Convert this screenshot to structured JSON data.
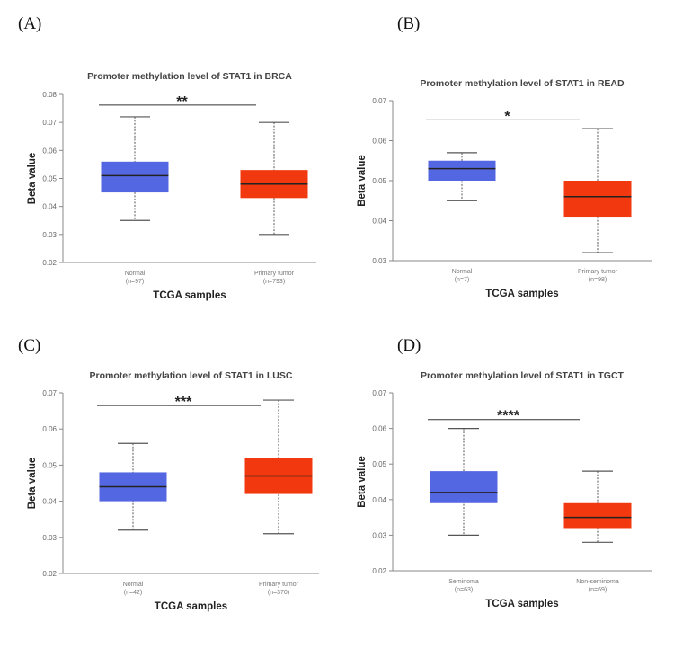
{
  "panel_labels": [
    "(A)",
    "(B)",
    "(C)",
    "(D)"
  ],
  "colors": {
    "group1": "#5467e2",
    "group2": "#f2380f"
  },
  "chart_data": [
    {
      "type": "boxplot",
      "title": "Promoter methylation level of STAT1 in BRCA",
      "xlabel": "TCGA samples",
      "ylabel": "Beta value",
      "ylim": [
        0.02,
        0.08
      ],
      "yticks": [
        "0.02",
        "0.03",
        "0.04",
        "0.05",
        "0.06",
        "0.07",
        "0.08"
      ],
      "categories": [
        {
          "name": "Normal",
          "n": "(n=97)",
          "min": 0.035,
          "q1": 0.045,
          "median": 0.051,
          "q3": 0.056,
          "max": 0.072
        },
        {
          "name": "Primary tumor",
          "n": "(n=793)",
          "min": 0.03,
          "q1": 0.043,
          "median": 0.048,
          "q3": 0.053,
          "max": 0.07
        }
      ],
      "significance": {
        "label": "**",
        "y": 0.0762
      }
    },
    {
      "type": "boxplot",
      "title": "Promoter methylation level of STAT1 in READ",
      "xlabel": "TCGA samples",
      "ylabel": "Beta value",
      "ylim": [
        0.03,
        0.07
      ],
      "yticks": [
        "0.03",
        "0.04",
        "0.05",
        "0.06",
        "0.07"
      ],
      "categories": [
        {
          "name": "Normal",
          "n": "(n=7)",
          "min": 0.045,
          "q1": 0.05,
          "median": 0.053,
          "q3": 0.055,
          "max": 0.057
        },
        {
          "name": "Primary tumor",
          "n": "(n=98)",
          "min": 0.032,
          "q1": 0.041,
          "median": 0.046,
          "q3": 0.05,
          "max": 0.063
        }
      ],
      "significance": {
        "label": "*",
        "y": 0.0652
      }
    },
    {
      "type": "boxplot",
      "title": "Promoter methylation level of STAT1 in LUSC",
      "xlabel": "TCGA samples",
      "ylabel": "Beta value",
      "ylim": [
        0.02,
        0.07
      ],
      "yticks": [
        "0.02",
        "0.03",
        "0.04",
        "0.05",
        "0.06",
        "0.07"
      ],
      "categories": [
        {
          "name": "Normal",
          "n": "(n=42)",
          "min": 0.032,
          "q1": 0.04,
          "median": 0.044,
          "q3": 0.048,
          "max": 0.056
        },
        {
          "name": "Primary tumor",
          "n": "(n=370)",
          "min": 0.031,
          "q1": 0.042,
          "median": 0.047,
          "q3": 0.052,
          "max": 0.068
        }
      ],
      "significance": {
        "label": "***",
        "y": 0.0665
      }
    },
    {
      "type": "boxplot",
      "title": "Promoter methylation level of STAT1 in TGCT",
      "xlabel": "TCGA samples",
      "ylabel": "Beta value",
      "ylim": [
        0.02,
        0.07
      ],
      "yticks": [
        "0.02",
        "0.03",
        "0.04",
        "0.05",
        "0.06",
        "0.07"
      ],
      "categories": [
        {
          "name": "Seminoma",
          "n": "(n=63)",
          "min": 0.03,
          "q1": 0.039,
          "median": 0.042,
          "q3": 0.048,
          "max": 0.06
        },
        {
          "name": "Non-seminoma",
          "n": "(n=69)",
          "min": 0.028,
          "q1": 0.032,
          "median": 0.035,
          "q3": 0.039,
          "max": 0.048
        }
      ],
      "significance": {
        "label": "****",
        "y": 0.0625
      }
    }
  ]
}
